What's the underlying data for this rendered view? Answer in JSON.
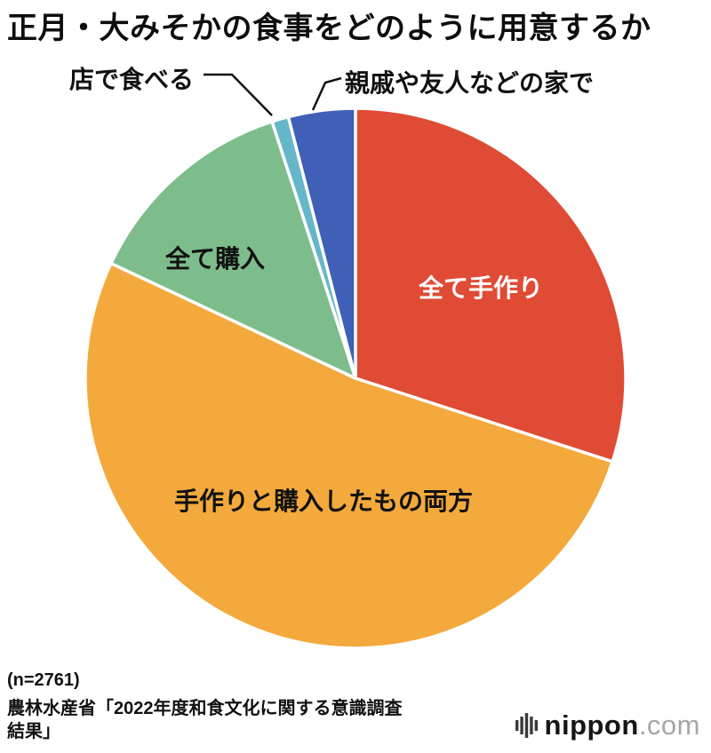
{
  "title": "正月・大みそかの食事をどのように用意するか",
  "chart_data": {
    "type": "pie",
    "title": "正月・大みそかの食事をどのように用意するか",
    "start_angle_deg": 0,
    "direction": "clockwise",
    "unit": "percent (estimated from slice angles; values not printed on chart)",
    "sample": "n=2761",
    "slices": [
      {
        "label": "全て手作り",
        "value": 30,
        "color": "#e04b35",
        "label_placement": "inside-white"
      },
      {
        "label": "手作りと購入したもの両方",
        "value": 52,
        "color": "#f3a93c",
        "label_placement": "inside-black"
      },
      {
        "label": "全て購入",
        "value": 13,
        "color": "#7dbd8c",
        "label_placement": "inside-black"
      },
      {
        "label": "店で食べる",
        "value": 1,
        "color": "#66b6c9",
        "label_placement": "callout"
      },
      {
        "label": "親戚や友人などの家で",
        "value": 4,
        "color": "#3f60b6",
        "label_placement": "callout"
      }
    ]
  },
  "footer": {
    "sample": "(n=2761)",
    "source_line1": "農林水産省「2022年度和食文化に関する意識調査",
    "source_line2": "結果」"
  },
  "logo": {
    "name": "nippon",
    "tld": ".com"
  }
}
